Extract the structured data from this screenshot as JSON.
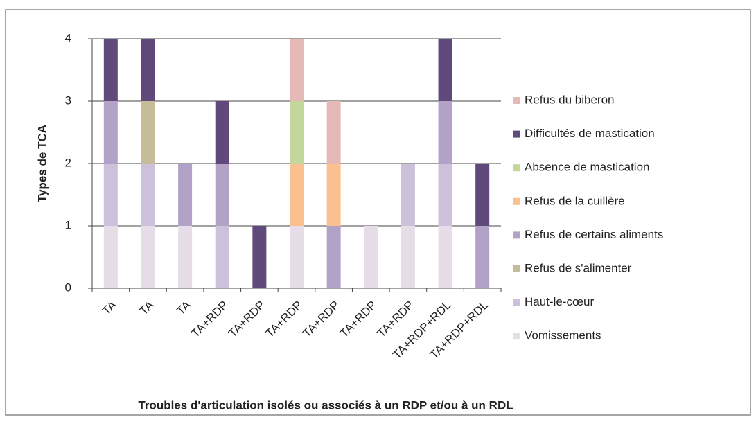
{
  "chart_data": {
    "type": "stacked_bar",
    "x_label": "Troubles d'articulation isolés ou associés à un RDP et/ou à un RDL",
    "y_label": "Types de TCA",
    "categories": [
      "TA",
      "TA",
      "TA",
      "TA+RDP",
      "TA+RDP",
      "TA+RDP",
      "TA+RDP",
      "TA+RDP",
      "TA+RDP",
      "TA+RDP+RDL",
      "TA+RDP+RDL"
    ],
    "series": [
      {
        "name": "Vomissements",
        "color": "#e6dde9",
        "values": [
          1,
          1,
          1,
          0,
          0,
          1,
          0,
          1,
          1,
          1,
          0
        ]
      },
      {
        "name": "Haut-le-cœur",
        "color": "#ccc0da",
        "values": [
          1,
          1,
          0,
          1,
          0,
          0,
          0,
          0,
          1,
          1,
          0
        ]
      },
      {
        "name": "Refus de s'alimenter",
        "color": "#c4bd97",
        "values": [
          0,
          1,
          0,
          0,
          0,
          0,
          0,
          0,
          0,
          0,
          0
        ]
      },
      {
        "name": "Refus de certains aliments",
        "color": "#b3a2c7",
        "values": [
          1,
          0,
          1,
          1,
          0,
          0,
          1,
          0,
          0,
          1,
          1
        ]
      },
      {
        "name": "Refus de la cuillère",
        "color": "#fac090",
        "values": [
          0,
          0,
          0,
          0,
          0,
          1,
          1,
          0,
          0,
          0,
          0
        ]
      },
      {
        "name": "Absence de mastication",
        "color": "#c3d69b",
        "values": [
          0,
          0,
          0,
          0,
          0,
          1,
          0,
          0,
          0,
          0,
          0
        ]
      },
      {
        "name": "Difficultés de mastication",
        "color": "#604a7b",
        "values": [
          1,
          1,
          0,
          1,
          1,
          0,
          0,
          0,
          0,
          1,
          1
        ]
      },
      {
        "name": "Refus du biberon",
        "color": "#e6b9b8",
        "values": [
          0,
          0,
          0,
          0,
          0,
          1,
          1,
          0,
          0,
          0,
          0
        ]
      }
    ],
    "ylim": [
      0,
      4
    ],
    "yticks": [
      0,
      1,
      2,
      3,
      4
    ],
    "grid": true,
    "legend": "right"
  }
}
